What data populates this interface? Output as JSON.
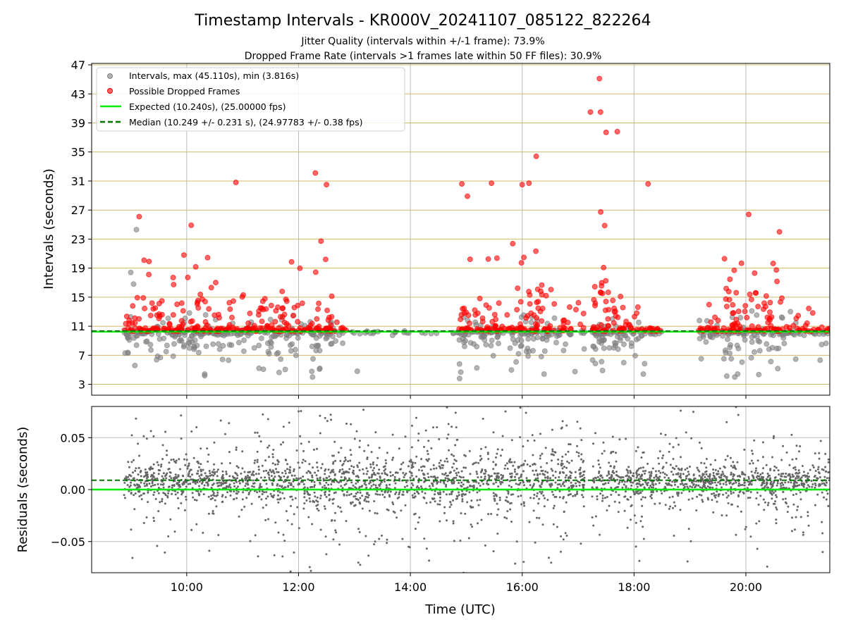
{
  "title": "Timestamp Intervals - KR000V_20241107_085122_822264",
  "subtitle_1": "Jitter Quality (intervals within +/-1 frame): 73.9%",
  "subtitle_2": "Dropped Frame Rate (intervals >1 frames late within 50 FF files): 30.9%",
  "colors": {
    "intervals": "#808080",
    "dropped": "#ff0000",
    "expected": "#00ee00",
    "median": "#007700",
    "hgrid": "#d4b86a",
    "vgrid": "#bbbbbb"
  },
  "chart_data": [
    {
      "type": "scatter",
      "ylabel": "Intervals (seconds)",
      "ylim": [
        1.5,
        47.2
      ],
      "xlim_hours": [
        8.3,
        21.5
      ],
      "yticks": [
        3,
        7,
        11,
        15,
        19,
        23,
        27,
        31,
        35,
        39,
        43,
        47
      ],
      "ytick_labels": [
        "3",
        "7",
        "11",
        "15",
        "19",
        "23",
        "27",
        "31",
        "35",
        "39",
        "43",
        "47"
      ],
      "grid": "horizontal gold lines at y ticks, vertical grey lines at x ticks",
      "legend_placement": "top-left",
      "legend": [
        "Intervals, max (45.110s), min (3.816s)",
        "Possible Dropped Frames",
        "Expected (10.240s), (25.00000 fps)",
        "Median (10.249 +/- 0.231 s), (24.97783 +/- 0.38 fps)"
      ],
      "expected_interval": 10.24,
      "median_interval": 10.249,
      "max_interval": 45.11,
      "min_interval": 3.816,
      "data_windows_hours": [
        [
          8.88,
          12.85
        ],
        [
          13.05,
          13.1
        ],
        [
          14.85,
          17.12
        ],
        [
          17.25,
          18.5
        ],
        [
          19.15,
          21.5
        ]
      ],
      "dropped_frames_sample": [
        {
          "x": 9.15,
          "y": 26.1
        },
        {
          "x": 9.95,
          "y": 20.8
        },
        {
          "x": 10.08,
          "y": 24.9
        },
        {
          "x": 10.88,
          "y": 30.8
        },
        {
          "x": 12.3,
          "y": 32.1
        },
        {
          "x": 12.5,
          "y": 30.5
        },
        {
          "x": 14.92,
          "y": 30.6
        },
        {
          "x": 15.02,
          "y": 28.9
        },
        {
          "x": 15.45,
          "y": 30.7
        },
        {
          "x": 16.0,
          "y": 30.5
        },
        {
          "x": 16.12,
          "y": 30.7
        },
        {
          "x": 16.25,
          "y": 34.4
        },
        {
          "x": 17.22,
          "y": 40.5
        },
        {
          "x": 17.4,
          "y": 40.5
        },
        {
          "x": 17.38,
          "y": 45.1
        },
        {
          "x": 17.5,
          "y": 37.7
        },
        {
          "x": 17.7,
          "y": 37.8
        },
        {
          "x": 18.25,
          "y": 30.6
        },
        {
          "x": 20.05,
          "y": 26.4
        },
        {
          "x": 20.6,
          "y": 24.0
        }
      ]
    },
    {
      "type": "scatter",
      "xlabel": "Time (UTC)",
      "ylabel": "Residuals (seconds)",
      "ylim": [
        -0.08,
        0.08
      ],
      "yticks": [
        -0.05,
        0.0,
        0.05
      ],
      "ytick_labels": [
        "−0.05",
        "0.00",
        "0.05"
      ],
      "xticks_hours": [
        10,
        12,
        14,
        16,
        18,
        20
      ],
      "xtick_labels": [
        "10:00",
        "12:00",
        "14:00",
        "16:00",
        "18:00",
        "20:00"
      ],
      "expected_residual": 0.0,
      "median_residual": 0.009,
      "data_windows_hours": [
        [
          8.88,
          17.12
        ],
        [
          17.25,
          21.5
        ]
      ]
    }
  ]
}
